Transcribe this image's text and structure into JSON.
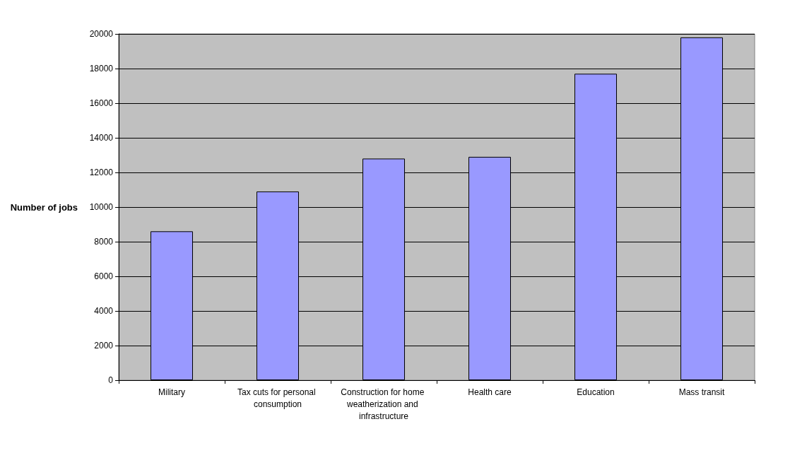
{
  "chart_data": {
    "type": "bar",
    "ylabel": "Number of jobs",
    "categories": [
      "Military",
      "Tax cuts for personal consumption",
      "Construction for home weatherization and infrastructure",
      "Health care",
      "Education",
      "Mass transit"
    ],
    "values": [
      8600,
      10900,
      12800,
      12900,
      17700,
      19800
    ],
    "color": "#9999ff",
    "ylim": [
      0,
      20000
    ],
    "yticks": [
      0,
      2000,
      4000,
      6000,
      8000,
      10000,
      12000,
      14000,
      16000,
      18000,
      20000
    ],
    "grid": "y"
  }
}
